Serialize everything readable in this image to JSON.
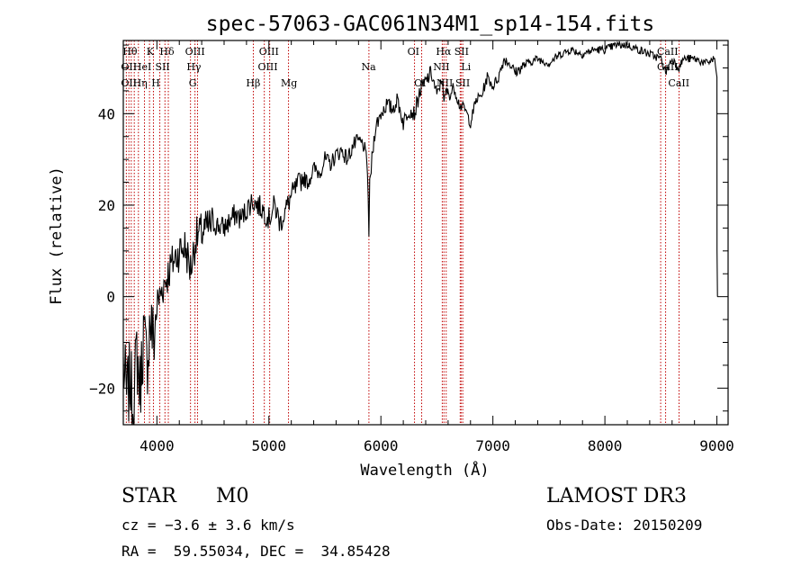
{
  "chart_data": {
    "type": "line",
    "title": "spec-57063-GAC061N34M1_sp14-154.fits",
    "xlabel": "Wavelength (Å)",
    "ylabel": "Flux (relative)",
    "xlim": [
      3700,
      9100
    ],
    "ylim": [
      -28,
      56
    ],
    "xticks": [
      4000,
      5000,
      6000,
      7000,
      8000,
      9000
    ],
    "yticks": [
      -20,
      0,
      20,
      40
    ],
    "series": [
      {
        "name": "flux",
        "x": [
          3700,
          3730,
          3760,
          3790,
          3820,
          3850,
          3880,
          3910,
          3940,
          3970,
          4000,
          4050,
          4100,
          4150,
          4200,
          4250,
          4300,
          4350,
          4400,
          4500,
          4600,
          4700,
          4750,
          4800,
          4850,
          4900,
          4950,
          5000,
          5050,
          5100,
          5150,
          5200,
          5250,
          5300,
          5350,
          5400,
          5450,
          5500,
          5550,
          5600,
          5650,
          5700,
          5750,
          5800,
          5850,
          5880,
          5893,
          5900,
          5920,
          5950,
          6000,
          6050,
          6100,
          6150,
          6200,
          6250,
          6300,
          6350,
          6400,
          6450,
          6500,
          6550,
          6563,
          6580,
          6620,
          6650,
          6700,
          6750,
          6800,
          6850,
          6900,
          6950,
          7000,
          7050,
          7100,
          7150,
          7200,
          7300,
          7400,
          7500,
          7600,
          7700,
          7800,
          7900,
          8000,
          8100,
          8200,
          8300,
          8400,
          8500,
          8542,
          8560,
          8600,
          8662,
          8700,
          8800,
          8900,
          8980,
          9000,
          9001,
          9005
        ],
        "values": [
          -15,
          -22,
          -18,
          -25,
          -12,
          -20,
          -8,
          -15,
          -5,
          -10,
          -2,
          2,
          5,
          8,
          10,
          11,
          6,
          13,
          14,
          16,
          15,
          18,
          17,
          19,
          21,
          20,
          19,
          17,
          20,
          16,
          19,
          22,
          24,
          26,
          25,
          28,
          27,
          30,
          29,
          31,
          32,
          30,
          33,
          34,
          33,
          28,
          14,
          24,
          30,
          37,
          40,
          42,
          41,
          43,
          38,
          41,
          40,
          45,
          47,
          49,
          44,
          48,
          42,
          45,
          44,
          46,
          42,
          41,
          38,
          43,
          44,
          48,
          46,
          48,
          52,
          51,
          49,
          51,
          52,
          51,
          53,
          54,
          53,
          54,
          54,
          55,
          55,
          54,
          53,
          52,
          49,
          50,
          52,
          50,
          52,
          52,
          51,
          52,
          48,
          10,
          0
        ]
      }
    ],
    "line_markers": {
      "wavelengths": [
        3727,
        3750,
        3771,
        3798,
        3835,
        3889,
        3934,
        3969,
        4026,
        4072,
        4102,
        4300,
        4340,
        4363,
        4861,
        4959,
        5007,
        5175,
        5893,
        6300,
        6364,
        6548,
        6563,
        6583,
        6708,
        6716,
        6731,
        8498,
        8542,
        8662
      ],
      "labels_row1": [
        "Hθ",
        "K",
        "Hδ",
        "OIII",
        "OIII",
        "OI",
        "Hα",
        "SII",
        "CaII"
      ],
      "labels_row2": [
        "OII",
        "HeI",
        "SII",
        "Hγ",
        "OIII",
        "Na",
        "NII",
        "Li",
        "CaII"
      ],
      "labels_row3": [
        "OII",
        "Hη",
        "H",
        "G",
        "Hβ",
        "Mg",
        "OI",
        "NII",
        "SII",
        "CaII"
      ]
    }
  },
  "info": {
    "object_type": "STAR",
    "subclass": "M0",
    "cz": "cz = −3.6 ± 3.6 km/s",
    "coords": "RA =  59.55034, DEC =  34.85428",
    "survey": "LAMOST DR3",
    "obs_date": "Obs-Date: 20150209"
  }
}
